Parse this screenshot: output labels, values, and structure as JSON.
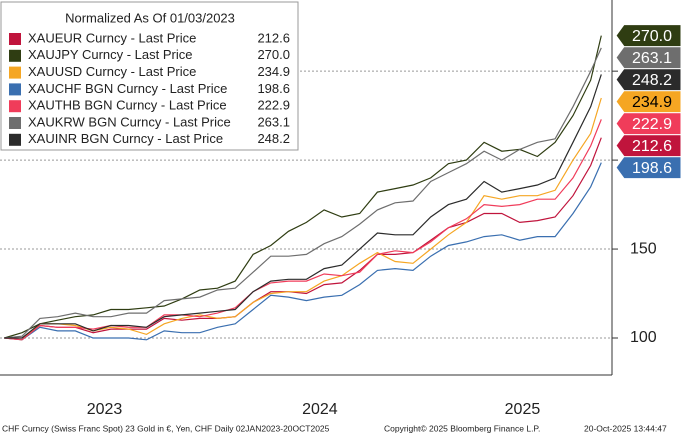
{
  "chart_data": {
    "type": "line",
    "legend_title": "Normalized As Of 01/03/2023",
    "x": [
      2023.0,
      2023.083,
      2023.167,
      2023.25,
      2023.333,
      2023.417,
      2023.5,
      2023.583,
      2023.667,
      2023.75,
      2023.833,
      2023.917,
      2024.0,
      2024.083,
      2024.167,
      2024.25,
      2024.333,
      2024.417,
      2024.5,
      2024.583,
      2024.667,
      2024.75,
      2024.833,
      2024.917,
      2025.0,
      2025.083,
      2025.167,
      2025.25,
      2025.333,
      2025.417,
      2025.5,
      2025.583,
      2025.667,
      2025.75,
      2025.8
    ],
    "xlim": [
      2022.98,
      2025.85
    ],
    "xticks": [
      {
        "value": 2023.47,
        "label": "2023"
      },
      {
        "value": 2024.48,
        "label": "2024"
      },
      {
        "value": 2025.43,
        "label": "2025"
      }
    ],
    "ylim": [
      79.2,
      290
    ],
    "yticks": [
      100,
      150,
      200,
      250
    ],
    "grid": true,
    "series": [
      {
        "name": "XAUEUR Curncy - Last Price",
        "last_label": "212.6",
        "color": "#c0143c",
        "values": [
          100,
          100,
          107,
          106,
          106,
          103,
          105,
          105,
          105,
          111,
          110,
          111,
          111,
          112,
          120,
          126,
          126,
          125,
          130,
          131,
          138,
          147,
          147,
          148,
          155,
          162,
          165,
          170,
          170,
          165,
          166,
          168,
          180,
          197,
          212.6
        ]
      },
      {
        "name": "XAUJPY Curncy - Last Price",
        "last_label": "270.0",
        "color": "#2f3d12",
        "values": [
          100,
          103,
          108,
          110,
          112,
          113,
          116,
          116,
          117,
          118,
          122,
          127,
          128,
          132,
          147,
          152,
          160,
          165,
          172,
          168,
          170,
          182,
          184,
          186,
          190,
          198,
          200,
          210,
          205,
          206,
          202,
          210,
          225,
          245,
          270
        ]
      },
      {
        "name": "XAUUSD Curncy - Last Price",
        "last_label": "234.9",
        "color": "#f5a623",
        "values": [
          100,
          99,
          108,
          108,
          107,
          104,
          106,
          105,
          102,
          108,
          111,
          113,
          111,
          112,
          120,
          125,
          126,
          126,
          132,
          135,
          142,
          148,
          143,
          142,
          150,
          158,
          165,
          180,
          178,
          180,
          180,
          183,
          200,
          215,
          234.9
        ]
      },
      {
        "name": "XAUCHF BGN Curncy - Last Price",
        "last_label": "198.6",
        "color": "#3a6fb0",
        "values": [
          100,
          99,
          106,
          104,
          104,
          100,
          100,
          100,
          99,
          104,
          103,
          103,
          106,
          108,
          116,
          124,
          123,
          121,
          123,
          124,
          130,
          138,
          139,
          138,
          146,
          152,
          154,
          157,
          158,
          155,
          157,
          157,
          170,
          185,
          198.6
        ]
      },
      {
        "name": "XAUTHB BGN Curncy - Last Price",
        "last_label": "222.9",
        "color": "#f03c5a",
        "values": [
          100,
          99,
          107,
          106,
          106,
          105,
          107,
          106,
          106,
          113,
          113,
          112,
          114,
          117,
          126,
          131,
          132,
          132,
          136,
          135,
          137,
          147,
          149,
          148,
          154,
          162,
          167,
          175,
          174,
          175,
          178,
          178,
          190,
          208,
          222.9
        ]
      },
      {
        "name": "XAUKRW BGN Curncy - Last Price",
        "last_label": "263.1",
        "color": "#6e6e6e",
        "values": [
          100,
          101,
          111,
          112,
          114,
          112,
          112,
          114,
          114,
          121,
          122,
          123,
          127,
          128,
          137,
          146,
          146,
          147,
          153,
          157,
          164,
          172,
          176,
          177,
          188,
          193,
          198,
          205,
          200,
          206,
          210,
          212,
          230,
          250,
          263.1
        ]
      },
      {
        "name": "XAUINR BGN Curncy - Last Price",
        "last_label": "248.2",
        "color": "#2b2b2b",
        "values": [
          100,
          100,
          108,
          108,
          108,
          104,
          107,
          107,
          106,
          112,
          113,
          114,
          115,
          116,
          126,
          132,
          133,
          133,
          139,
          141,
          150,
          159,
          158,
          158,
          168,
          175,
          178,
          188,
          182,
          184,
          186,
          190,
          210,
          230,
          248.2
        ]
      }
    ],
    "footer": {
      "source": "CHF Curncy (Swiss Franc Spot) 23 Gold in €, Yen, CHF Daily 02JAN2023-20OCT2025",
      "copyright": "Copyright© 2025 Bloomberg Finance L.P.",
      "timestamp": "20-Oct-2025 13:44:47"
    }
  }
}
